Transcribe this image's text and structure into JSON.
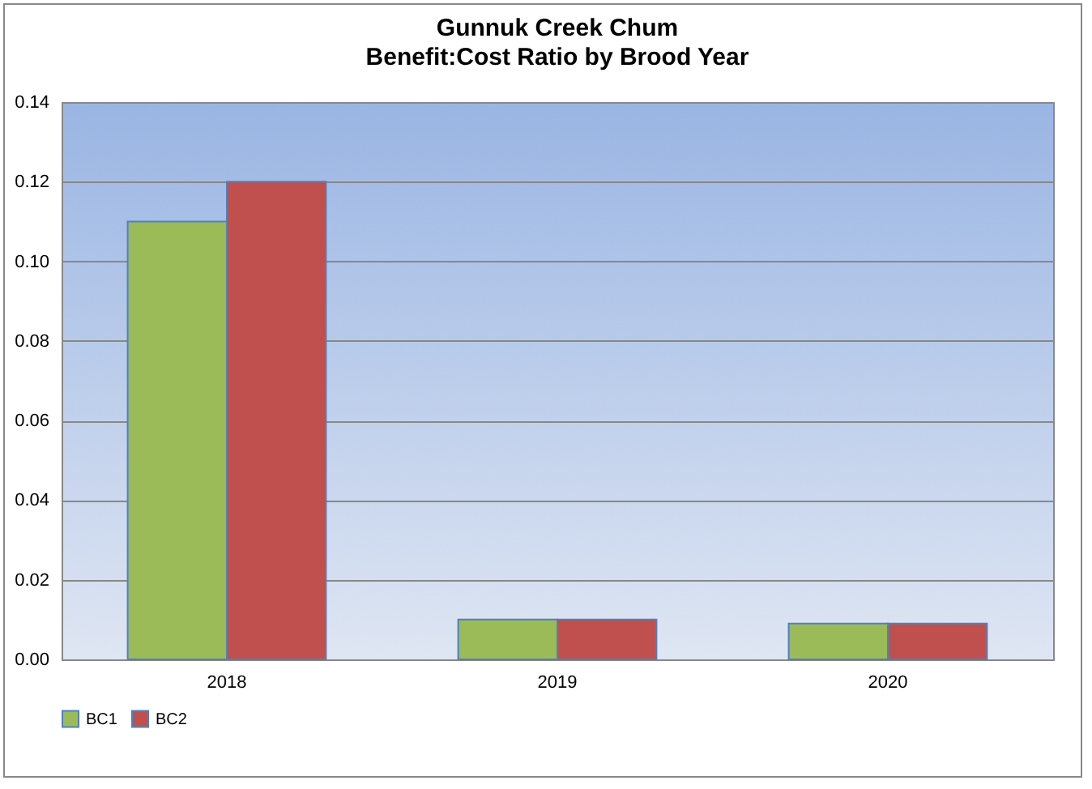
{
  "chart_data": {
    "type": "bar",
    "title": "Gunnuk Creek Chum",
    "subtitle": "Benefit:Cost Ratio by Brood Year",
    "categories": [
      "2018",
      "2019",
      "2020"
    ],
    "series": [
      {
        "name": "BC1",
        "color": "#9bbb59",
        "values": [
          0.11,
          0.01,
          0.009
        ]
      },
      {
        "name": "BC2",
        "color": "#c0504d",
        "values": [
          0.12,
          0.01,
          0.009
        ]
      }
    ],
    "ylim": [
      0,
      0.14
    ],
    "yticks": [
      {
        "value": 0,
        "label": "0.00"
      },
      {
        "value": 0.02,
        "label": "0.02"
      },
      {
        "value": 0.04,
        "label": "0.04"
      },
      {
        "value": 0.06,
        "label": "0.06"
      },
      {
        "value": 0.08,
        "label": "0.08"
      },
      {
        "value": 0.1,
        "label": "0.10"
      },
      {
        "value": 0.12,
        "label": "0.12"
      },
      {
        "value": 0.14,
        "label": "0.14"
      }
    ],
    "grid": "y",
    "legend": "bottom"
  }
}
